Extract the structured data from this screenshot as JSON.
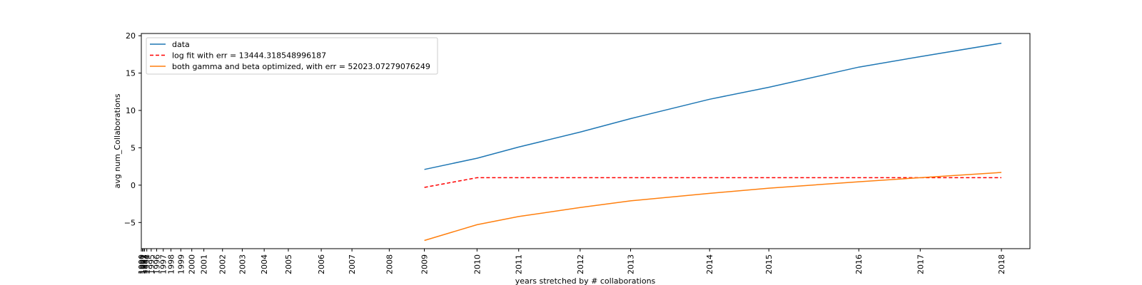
{
  "chart_data": {
    "type": "line",
    "xlabel": "years stretched by # collaborations",
    "ylabel": "avg num_Collaborations",
    "ylim": [
      -8.5,
      20.3
    ],
    "yticks": [
      -5,
      0,
      5,
      10,
      15,
      20
    ],
    "ytick_labels": [
      "−5",
      "0",
      "5",
      "10",
      "15",
      "20"
    ],
    "grid": false,
    "legend_position": "top-left",
    "xticks": [
      {
        "label": "1990",
        "value": 1.0
      },
      {
        "label": "1991",
        "value": 1.05
      },
      {
        "label": "1992",
        "value": 1.1
      },
      {
        "label": "1993",
        "value": 1.15
      },
      {
        "label": "1994",
        "value": 1.25
      },
      {
        "label": "1995",
        "value": 1.45
      },
      {
        "label": "1996",
        "value": 1.7
      },
      {
        "label": "1997",
        "value": 2.0
      },
      {
        "label": "1998",
        "value": 2.35
      },
      {
        "label": "1999",
        "value": 2.8
      },
      {
        "label": "2000",
        "value": 3.3
      },
      {
        "label": "2001",
        "value": 3.85
      },
      {
        "label": "2002",
        "value": 4.7
      },
      {
        "label": "2003",
        "value": 5.6
      },
      {
        "label": "2004",
        "value": 6.6
      },
      {
        "label": "2005",
        "value": 7.7
      },
      {
        "label": "2006",
        "value": 9.2
      },
      {
        "label": "2007",
        "value": 10.6
      },
      {
        "label": "2008",
        "value": 12.3
      },
      {
        "label": "2009",
        "value": 13.9
      },
      {
        "label": "2010",
        "value": 16.3
      },
      {
        "label": "2011",
        "value": 18.2
      },
      {
        "label": "2012",
        "value": 21.0
      },
      {
        "label": "2013",
        "value": 23.3
      },
      {
        "label": "2014",
        "value": 26.9
      },
      {
        "label": "2015",
        "value": 29.6
      },
      {
        "label": "2016",
        "value": 33.7
      },
      {
        "label": "2017",
        "value": 36.5
      },
      {
        "label": "2018",
        "value": 40.2
      }
    ],
    "xlim": [
      1.0,
      41.5
    ],
    "series": [
      {
        "name": "data",
        "color": "#1f77b4",
        "dash": "solid",
        "points": [
          [
            13.9,
            2.1
          ],
          [
            16.3,
            3.6
          ],
          [
            18.2,
            5.1
          ],
          [
            21.0,
            7.1
          ],
          [
            23.3,
            8.9
          ],
          [
            26.9,
            11.5
          ],
          [
            29.6,
            13.1
          ],
          [
            33.7,
            15.8
          ],
          [
            36.5,
            17.2
          ],
          [
            40.2,
            19.0
          ]
        ]
      },
      {
        "name": "log fit with err = 13444.318548996187",
        "color": "#ff0000",
        "dash": "dashed",
        "points": [
          [
            13.9,
            -0.3
          ],
          [
            16.3,
            1.0
          ],
          [
            18.2,
            1.0
          ],
          [
            21.0,
            1.0
          ],
          [
            23.3,
            1.0
          ],
          [
            26.9,
            1.0
          ],
          [
            29.6,
            1.0
          ],
          [
            33.7,
            1.0
          ],
          [
            36.5,
            1.0
          ],
          [
            40.2,
            1.0
          ]
        ]
      },
      {
        "name": "both gamma and beta optimized, with err = 52023.07279076249",
        "color": "#ff7f0e",
        "dash": "solid",
        "points": [
          [
            13.9,
            -7.4
          ],
          [
            16.3,
            -5.3
          ],
          [
            18.2,
            -4.2
          ],
          [
            21.0,
            -3.0
          ],
          [
            23.3,
            -2.1
          ],
          [
            26.9,
            -1.1
          ],
          [
            29.6,
            -0.4
          ],
          [
            33.7,
            0.45
          ],
          [
            36.5,
            1.0
          ],
          [
            40.2,
            1.7
          ]
        ]
      }
    ]
  }
}
